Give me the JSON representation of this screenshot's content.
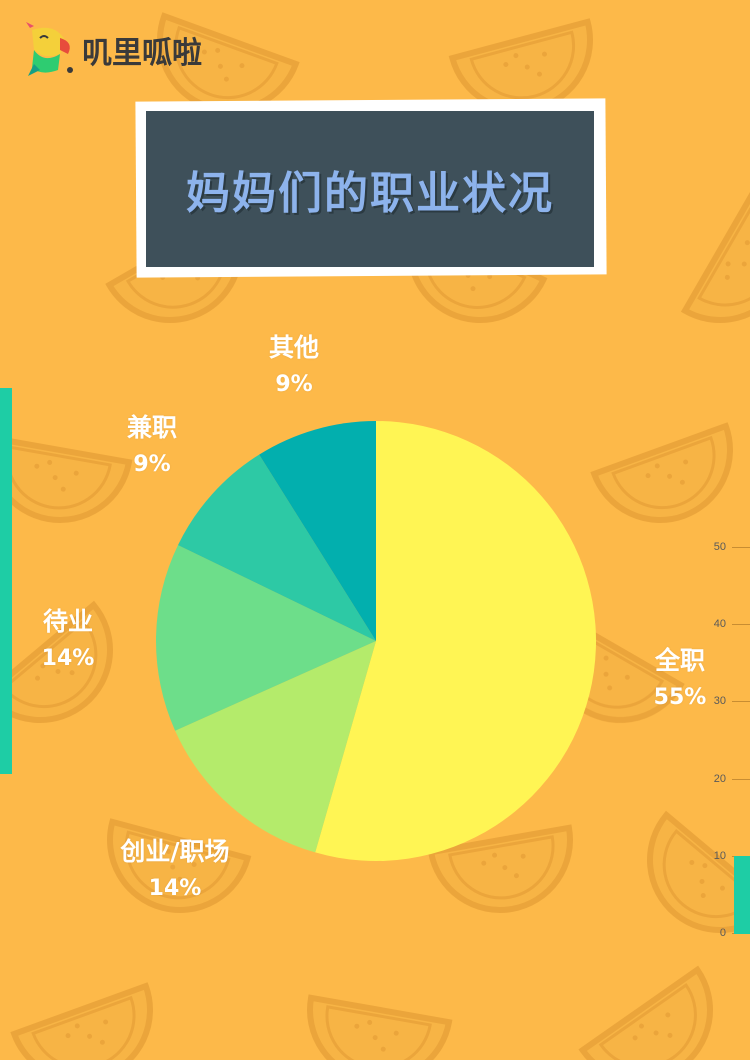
{
  "brand": {
    "name": "叽里呱啦"
  },
  "title": "妈妈们的职业状况",
  "colors": {
    "background": "#FDB949",
    "pattern": "#F3AE3F",
    "title_box": "#3E505A",
    "title_text": "#8DB3EC",
    "accent": "#1ECDA5",
    "label": "#FFFFFF"
  },
  "chart_data": {
    "type": "pie",
    "title": "妈妈们的职业状况",
    "slices": [
      {
        "label": "全职",
        "percent_text": "55%",
        "value": 55,
        "color": "#FFF554"
      },
      {
        "label": "创业/职场",
        "percent_text": "14%",
        "value": 14,
        "color": "#B4EB6B"
      },
      {
        "label": "待业",
        "percent_text": "14%",
        "value": 14,
        "color": "#6DDE8A"
      },
      {
        "label": "兼职",
        "percent_text": "9%",
        "value": 9,
        "color": "#2DC9A5"
      },
      {
        "label": "其他",
        "percent_text": "9%",
        "value": 9,
        "color": "#02AFAE"
      }
    ],
    "start_angle": "top",
    "direction": "clockwise",
    "side_axis": {
      "ticks": [
        "50",
        "40",
        "30",
        "20",
        "10",
        "0"
      ],
      "range": [
        0,
        50
      ]
    }
  }
}
